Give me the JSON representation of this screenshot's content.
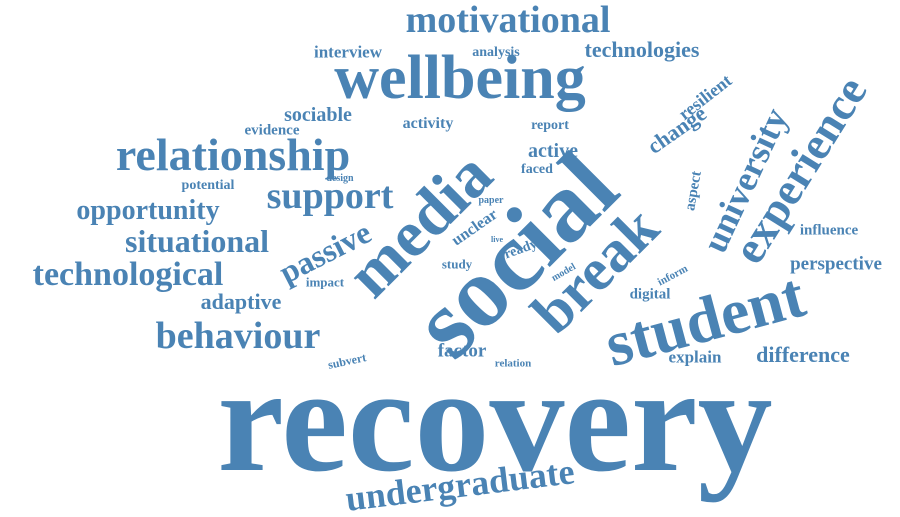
{
  "color": "#4a83b4",
  "words": [
    {
      "text": "recovery"
    },
    {
      "text": "social"
    },
    {
      "text": "student"
    },
    {
      "text": "media"
    },
    {
      "text": "wellbeing"
    },
    {
      "text": "break"
    },
    {
      "text": "relationship"
    },
    {
      "text": "experience"
    },
    {
      "text": "university"
    },
    {
      "text": "undergraduate"
    },
    {
      "text": "motivational"
    },
    {
      "text": "behaviour"
    },
    {
      "text": "technological"
    },
    {
      "text": "support"
    },
    {
      "text": "situational"
    },
    {
      "text": "opportunity"
    },
    {
      "text": "passive"
    },
    {
      "text": "technologies"
    },
    {
      "text": "change"
    },
    {
      "text": "difference"
    },
    {
      "text": "active"
    },
    {
      "text": "adaptive"
    },
    {
      "text": "sociable"
    },
    {
      "text": "resilient"
    },
    {
      "text": "perspective"
    },
    {
      "text": "factor"
    },
    {
      "text": "interview"
    },
    {
      "text": "analysis"
    },
    {
      "text": "activity"
    },
    {
      "text": "evidence"
    },
    {
      "text": "report"
    },
    {
      "text": "explain"
    },
    {
      "text": "influence"
    },
    {
      "text": "digital"
    },
    {
      "text": "aspect"
    },
    {
      "text": "unclear"
    },
    {
      "text": "potential"
    },
    {
      "text": "faced"
    },
    {
      "text": "ready"
    },
    {
      "text": "study"
    },
    {
      "text": "impact"
    },
    {
      "text": "subvert"
    },
    {
      "text": "relation"
    },
    {
      "text": "inform"
    },
    {
      "text": "design"
    },
    {
      "text": "paper"
    },
    {
      "text": "model"
    },
    {
      "text": "live"
    }
  ]
}
